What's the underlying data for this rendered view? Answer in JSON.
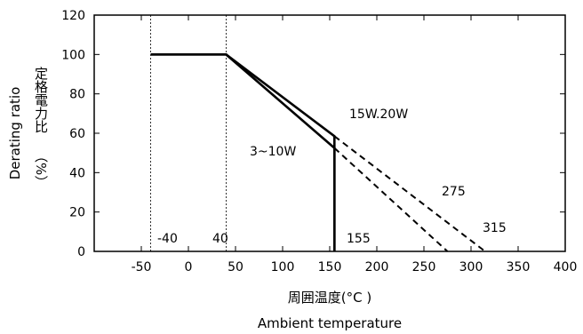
{
  "chart_data": {
    "type": "line",
    "xlabel_ja": "周囲温度(°C )",
    "xlabel_en": "Ambient temperature",
    "ylabel_en": "Derating ratio",
    "ylabel_ja": "定格電力比",
    "ylabel_unit": "（%）",
    "xlim": [
      -100,
      400
    ],
    "ylim": [
      0,
      120
    ],
    "x_ticks": [
      -50,
      0,
      50,
      100,
      150,
      200,
      250,
      300,
      350,
      400
    ],
    "y_ticks": [
      0,
      20,
      40,
      60,
      80,
      100,
      120
    ],
    "x_tick_labels": [
      "-50",
      "0",
      "50",
      "100",
      "150",
      "200",
      "250",
      "300",
      "350",
      "400"
    ],
    "y_tick_labels": [
      "0",
      "20",
      "40",
      "60",
      "80",
      "100",
      "120"
    ],
    "grid": "none",
    "series": [
      {
        "name": "15W.20W",
        "points": [
          [
            -40,
            100
          ],
          [
            40,
            100
          ],
          [
            155,
            58.5
          ],
          [
            155,
            0
          ]
        ],
        "extrapolation": [
          [
            155,
            58.5
          ],
          [
            315,
            0
          ]
        ]
      },
      {
        "name": "3~10W",
        "points": [
          [
            -40,
            100
          ],
          [
            40,
            100
          ],
          [
            155,
            52.5
          ],
          [
            155,
            0
          ]
        ],
        "extrapolation": [
          [
            155,
            52.5
          ],
          [
            275,
            0
          ]
        ]
      }
    ],
    "reference_lines_x": [
      -40,
      40
    ],
    "annotations": [
      "-40",
      "40",
      "155",
      "275",
      "315"
    ]
  }
}
